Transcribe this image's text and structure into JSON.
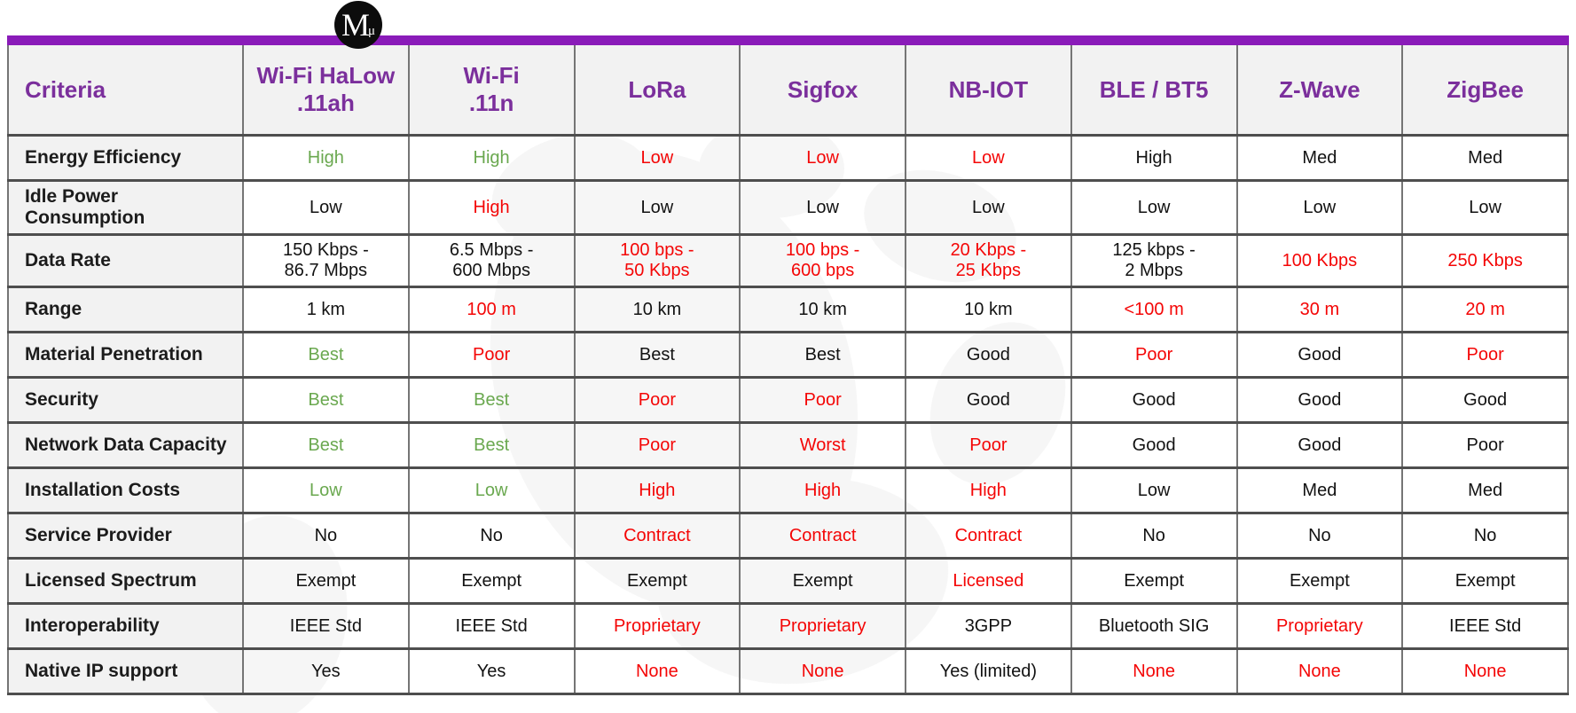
{
  "colors": {
    "accent_purple": "#8a1bb9",
    "header_text_purple": "#7b2f9c",
    "good_green": "#6aa84f",
    "bad_red": "#f40606",
    "neutral_black": "#121212"
  },
  "logo": {
    "letter": "M",
    "subscript": "μ"
  },
  "table": {
    "columns": [
      {
        "id": "criteria",
        "label": "Criteria"
      },
      {
        "id": "wifi-halow",
        "label": "Wi-Fi HaLow\n.11ah"
      },
      {
        "id": "wifi-n",
        "label": "Wi-Fi\n.11n"
      },
      {
        "id": "lora",
        "label": "LoRa"
      },
      {
        "id": "sigfox",
        "label": "Sigfox"
      },
      {
        "id": "nb-iot",
        "label": "NB-IOT"
      },
      {
        "id": "ble-bt5",
        "label": "BLE / BT5"
      },
      {
        "id": "z-wave",
        "label": "Z-Wave"
      },
      {
        "id": "zigbee",
        "label": "ZigBee"
      }
    ],
    "rows": [
      {
        "label": "Energy Efficiency",
        "cells": [
          {
            "text": "High",
            "tone": "good"
          },
          {
            "text": "High",
            "tone": "good"
          },
          {
            "text": "Low",
            "tone": "bad"
          },
          {
            "text": "Low",
            "tone": "bad"
          },
          {
            "text": "Low",
            "tone": "bad"
          },
          {
            "text": "High",
            "tone": "neutral"
          },
          {
            "text": "Med",
            "tone": "neutral"
          },
          {
            "text": "Med",
            "tone": "neutral"
          }
        ]
      },
      {
        "label": "Idle Power Consumption",
        "cells": [
          {
            "text": "Low",
            "tone": "neutral"
          },
          {
            "text": "High",
            "tone": "bad"
          },
          {
            "text": "Low",
            "tone": "neutral"
          },
          {
            "text": "Low",
            "tone": "neutral"
          },
          {
            "text": "Low",
            "tone": "neutral"
          },
          {
            "text": "Low",
            "tone": "neutral"
          },
          {
            "text": "Low",
            "tone": "neutral"
          },
          {
            "text": "Low",
            "tone": "neutral"
          }
        ]
      },
      {
        "label": "Data Rate",
        "cells": [
          {
            "text": "150 Kbps -\n86.7 Mbps",
            "tone": "neutral"
          },
          {
            "text": "6.5 Mbps -\n600 Mbps",
            "tone": "neutral"
          },
          {
            "text": "100 bps -\n50 Kbps",
            "tone": "bad"
          },
          {
            "text": "100 bps -\n600 bps",
            "tone": "bad"
          },
          {
            "text": "20 Kbps -\n25 Kbps",
            "tone": "bad"
          },
          {
            "text": "125 kbps -\n2 Mbps",
            "tone": "neutral"
          },
          {
            "text": "100 Kbps",
            "tone": "bad"
          },
          {
            "text": "250 Kbps",
            "tone": "bad"
          }
        ]
      },
      {
        "label": "Range",
        "cells": [
          {
            "text": "1 km",
            "tone": "neutral"
          },
          {
            "text": "100 m",
            "tone": "bad"
          },
          {
            "text": "10 km",
            "tone": "neutral"
          },
          {
            "text": "10 km",
            "tone": "neutral"
          },
          {
            "text": "10 km",
            "tone": "neutral"
          },
          {
            "text": "<100 m",
            "tone": "bad"
          },
          {
            "text": "30 m",
            "tone": "bad"
          },
          {
            "text": "20 m",
            "tone": "bad"
          }
        ]
      },
      {
        "label": "Material Penetration",
        "cells": [
          {
            "text": "Best",
            "tone": "good"
          },
          {
            "text": "Poor",
            "tone": "bad"
          },
          {
            "text": "Best",
            "tone": "neutral"
          },
          {
            "text": "Best",
            "tone": "neutral"
          },
          {
            "text": "Good",
            "tone": "neutral"
          },
          {
            "text": "Poor",
            "tone": "bad"
          },
          {
            "text": "Good",
            "tone": "neutral"
          },
          {
            "text": "Poor",
            "tone": "bad"
          }
        ]
      },
      {
        "label": "Security",
        "cells": [
          {
            "text": "Best",
            "tone": "good"
          },
          {
            "text": "Best",
            "tone": "good"
          },
          {
            "text": "Poor",
            "tone": "bad"
          },
          {
            "text": "Poor",
            "tone": "bad"
          },
          {
            "text": "Good",
            "tone": "neutral"
          },
          {
            "text": "Good",
            "tone": "neutral"
          },
          {
            "text": "Good",
            "tone": "neutral"
          },
          {
            "text": "Good",
            "tone": "neutral"
          }
        ]
      },
      {
        "label": "Network Data Capacity",
        "cells": [
          {
            "text": "Best",
            "tone": "good"
          },
          {
            "text": "Best",
            "tone": "good"
          },
          {
            "text": "Poor",
            "tone": "bad"
          },
          {
            "text": "Worst",
            "tone": "bad"
          },
          {
            "text": "Poor",
            "tone": "bad"
          },
          {
            "text": "Good",
            "tone": "neutral"
          },
          {
            "text": "Good",
            "tone": "neutral"
          },
          {
            "text": "Poor",
            "tone": "neutral"
          }
        ]
      },
      {
        "label": "Installation Costs",
        "cells": [
          {
            "text": "Low",
            "tone": "good"
          },
          {
            "text": "Low",
            "tone": "good"
          },
          {
            "text": "High",
            "tone": "bad"
          },
          {
            "text": "High",
            "tone": "bad"
          },
          {
            "text": "High",
            "tone": "bad"
          },
          {
            "text": "Low",
            "tone": "neutral"
          },
          {
            "text": "Med",
            "tone": "neutral"
          },
          {
            "text": "Med",
            "tone": "neutral"
          }
        ]
      },
      {
        "label": "Service Provider",
        "cells": [
          {
            "text": "No",
            "tone": "neutral"
          },
          {
            "text": "No",
            "tone": "neutral"
          },
          {
            "text": "Contract",
            "tone": "bad"
          },
          {
            "text": "Contract",
            "tone": "bad"
          },
          {
            "text": "Contract",
            "tone": "bad"
          },
          {
            "text": "No",
            "tone": "neutral"
          },
          {
            "text": "No",
            "tone": "neutral"
          },
          {
            "text": "No",
            "tone": "neutral"
          }
        ]
      },
      {
        "label": "Licensed Spectrum",
        "cells": [
          {
            "text": "Exempt",
            "tone": "neutral"
          },
          {
            "text": "Exempt",
            "tone": "neutral"
          },
          {
            "text": "Exempt",
            "tone": "neutral"
          },
          {
            "text": "Exempt",
            "tone": "neutral"
          },
          {
            "text": "Licensed",
            "tone": "bad"
          },
          {
            "text": "Exempt",
            "tone": "neutral"
          },
          {
            "text": "Exempt",
            "tone": "neutral"
          },
          {
            "text": "Exempt",
            "tone": "neutral"
          }
        ]
      },
      {
        "label": "Interoperability",
        "cells": [
          {
            "text": "IEEE Std",
            "tone": "neutral"
          },
          {
            "text": "IEEE Std",
            "tone": "neutral"
          },
          {
            "text": "Proprietary",
            "tone": "bad"
          },
          {
            "text": "Proprietary",
            "tone": "bad"
          },
          {
            "text": "3GPP",
            "tone": "neutral"
          },
          {
            "text": "Bluetooth SIG",
            "tone": "neutral"
          },
          {
            "text": "Proprietary",
            "tone": "bad"
          },
          {
            "text": "IEEE Std",
            "tone": "neutral"
          }
        ]
      },
      {
        "label": "Native IP support",
        "cells": [
          {
            "text": "Yes",
            "tone": "neutral"
          },
          {
            "text": "Yes",
            "tone": "neutral"
          },
          {
            "text": "None",
            "tone": "bad"
          },
          {
            "text": "None",
            "tone": "bad"
          },
          {
            "text": "Yes (limited)",
            "tone": "neutral"
          },
          {
            "text": "None",
            "tone": "bad"
          },
          {
            "text": "None",
            "tone": "bad"
          },
          {
            "text": "None",
            "tone": "bad"
          }
        ]
      }
    ]
  }
}
